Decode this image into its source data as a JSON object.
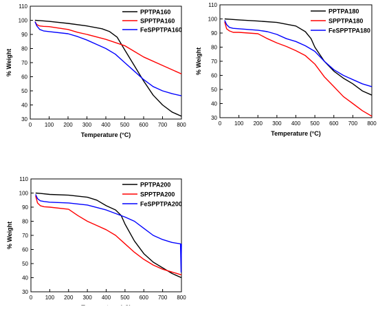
{
  "chart_data": [
    {
      "type": "line",
      "xlabel": "Temperature (°C)",
      "ylabel": "% Weight",
      "xlim": [
        0,
        800
      ],
      "ylim": [
        30,
        110
      ],
      "xticks": [
        0,
        100,
        200,
        300,
        400,
        500,
        600,
        700,
        800
      ],
      "yticks": [
        30,
        40,
        50,
        60,
        70,
        80,
        90,
        100,
        110
      ],
      "xtick_labels": [
        "0",
        "100",
        "200",
        "300",
        "400",
        "500",
        "600",
        "700",
        "800"
      ],
      "ytick_labels": [
        "30",
        "40",
        "50",
        "60",
        "70",
        "80",
        "90",
        "100",
        "110"
      ],
      "grid": false,
      "legend_position": "top-right",
      "series": [
        {
          "name": "PPTPA160",
          "color": "#000000",
          "x": [
            25,
            50,
            100,
            200,
            300,
            380,
            420,
            460,
            500,
            550,
            600,
            650,
            700,
            750,
            800
          ],
          "y": [
            100,
            99.8,
            99.2,
            97.8,
            96,
            94,
            92,
            88,
            79,
            68,
            57,
            47,
            40,
            35,
            32
          ]
        },
        {
          "name": "SPPTPA160",
          "color": "#ff0000",
          "x": [
            25,
            35,
            50,
            70,
            100,
            150,
            200,
            250,
            300,
            400,
            500,
            550,
            600,
            700,
            800
          ],
          "y": [
            99,
            97,
            96,
            95.7,
            95.5,
            94.5,
            93.5,
            91.5,
            90,
            86.5,
            82,
            78,
            74,
            68,
            62
          ]
        },
        {
          "name": "FeSPPTPA160",
          "color": "#0000ff",
          "x": [
            25,
            35,
            50,
            70,
            100,
            200,
            250,
            300,
            350,
            400,
            450,
            500,
            550,
            600,
            650,
            700,
            750,
            800
          ],
          "y": [
            99,
            96,
            93.5,
            92.5,
            92,
            90.5,
            88.5,
            86,
            83,
            80,
            76,
            70,
            64,
            58,
            53,
            50,
            48,
            46.5
          ]
        }
      ]
    },
    {
      "type": "line",
      "xlabel": "Temperature (°C)",
      "ylabel": "% Weight",
      "xlim": [
        0,
        800
      ],
      "ylim": [
        30,
        110
      ],
      "xticks": [
        0,
        100,
        200,
        300,
        400,
        500,
        600,
        700,
        800
      ],
      "yticks": [
        30,
        40,
        50,
        60,
        70,
        80,
        90,
        100,
        110
      ],
      "xtick_labels": [
        "0",
        "100",
        "200",
        "300",
        "400",
        "500",
        "600",
        "700",
        "800"
      ],
      "ytick_labels": [
        "30",
        "40",
        "50",
        "60",
        "70",
        "80",
        "90",
        "100",
        "110"
      ],
      "grid": false,
      "legend_position": "top-right",
      "series": [
        {
          "name": "PPTPA180",
          "color": "#000000",
          "x": [
            25,
            50,
            100,
            200,
            300,
            400,
            450,
            480,
            500,
            550,
            600,
            650,
            700,
            750,
            800
          ],
          "y": [
            100,
            99.8,
            99.3,
            98.5,
            97.5,
            95,
            91,
            86,
            80,
            70,
            63,
            58,
            54,
            49,
            46
          ]
        },
        {
          "name": "SPPTPA180",
          "color": "#ff0000",
          "x": [
            25,
            35,
            50,
            70,
            100,
            200,
            250,
            300,
            350,
            400,
            450,
            500,
            550,
            600,
            650,
            700,
            750,
            800
          ],
          "y": [
            98,
            93,
            91.5,
            90.5,
            90.5,
            89.5,
            86,
            83,
            80.5,
            77.5,
            74,
            68,
            59,
            52,
            45,
            40,
            35,
            31
          ]
        },
        {
          "name": "FeSPPTPA180",
          "color": "#0000ff",
          "x": [
            25,
            35,
            50,
            70,
            100,
            200,
            250,
            300,
            350,
            400,
            450,
            500,
            550,
            600,
            650,
            700,
            750,
            800
          ],
          "y": [
            99,
            96,
            94,
            93.3,
            93,
            92,
            91,
            89,
            86,
            84,
            81,
            77,
            70,
            64,
            60,
            57,
            54,
            52
          ]
        }
      ]
    },
    {
      "type": "line",
      "xlabel": "Temperature (°C)",
      "ylabel": "% Weight",
      "xlim": [
        0,
        800
      ],
      "ylim": [
        30,
        110
      ],
      "xticks": [
        0,
        100,
        200,
        300,
        400,
        500,
        600,
        700,
        800
      ],
      "yticks": [
        30,
        40,
        50,
        60,
        70,
        80,
        90,
        100,
        110
      ],
      "xtick_labels": [
        "0",
        "100",
        "200",
        "300",
        "400",
        "500",
        "600",
        "700",
        "800"
      ],
      "ytick_labels": [
        "30",
        "40",
        "50",
        "60",
        "70",
        "80",
        "90",
        "100",
        "110"
      ],
      "grid": false,
      "legend_position": "top-right",
      "series": [
        {
          "name": "PPTPA200",
          "color": "#000000",
          "x": [
            25,
            50,
            100,
            200,
            300,
            350,
            400,
            450,
            480,
            500,
            550,
            600,
            650,
            700,
            750,
            800
          ],
          "y": [
            100,
            99.7,
            99,
            98.5,
            97,
            95,
            91,
            88,
            84,
            78,
            66,
            57,
            51,
            47,
            43,
            40
          ]
        },
        {
          "name": "SPPTPA200",
          "color": "#ff0000",
          "x": [
            25,
            35,
            50,
            70,
            100,
            200,
            250,
            300,
            350,
            400,
            450,
            500,
            550,
            600,
            650,
            700,
            750,
            800
          ],
          "y": [
            98,
            93,
            91,
            90.3,
            90,
            88.5,
            84,
            80,
            77,
            74,
            70,
            64,
            58,
            53,
            49,
            46,
            44,
            42
          ]
        },
        {
          "name": "FeSPPTPA200",
          "color": "#0000ff",
          "x": [
            25,
            35,
            50,
            70,
            100,
            200,
            300,
            400,
            500,
            550,
            600,
            650,
            700,
            750,
            795,
            798,
            800
          ],
          "y": [
            99,
            96,
            94.5,
            94,
            93.5,
            93,
            91.5,
            88,
            83,
            80,
            75,
            70,
            67,
            65,
            64,
            44,
            64
          ]
        }
      ]
    }
  ]
}
